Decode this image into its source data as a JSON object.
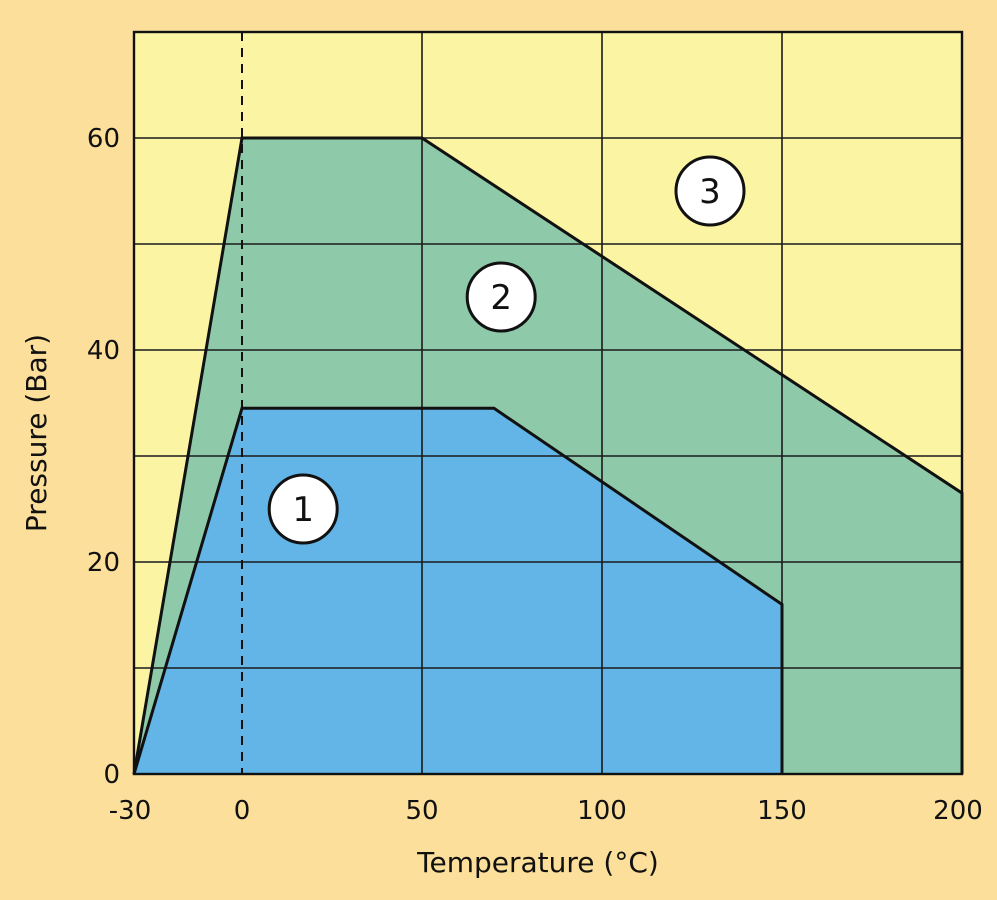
{
  "chart_data": {
    "type": "area",
    "xlabel": "Temperature (°C)",
    "ylabel": "Pressure (Bar)",
    "xlim": [
      -30,
      200
    ],
    "ylim": [
      0,
      70
    ],
    "x_ticks": [
      -30,
      0,
      50,
      100,
      150,
      200
    ],
    "x_tick_labels": [
      "-30",
      "0",
      "50",
      "100",
      "150",
      "200"
    ],
    "y_ticks": [
      0,
      20,
      40,
      60
    ],
    "y_tick_labels": [
      "0",
      "20",
      "40",
      "60"
    ],
    "x_grid": [
      0,
      50,
      100,
      150
    ],
    "y_grid": [
      10,
      20,
      30,
      40,
      50,
      60
    ],
    "reference_line_x": 0,
    "grid": true,
    "colors": {
      "page_background": "#fbdf9a",
      "plot_background": "#fbf5a3",
      "region_1": "#62b5e6",
      "region_2": "#8ec9a9",
      "grid": "#1a1a1a"
    },
    "regions": [
      {
        "label": "2",
        "points": [
          [
            -30,
            0
          ],
          [
            0,
            60
          ],
          [
            50,
            60
          ],
          [
            200,
            26.5
          ],
          [
            200,
            0
          ]
        ]
      },
      {
        "label": "1",
        "points": [
          [
            -30,
            0
          ],
          [
            0,
            34.5
          ],
          [
            70,
            34.5
          ],
          [
            150,
            16
          ],
          [
            150,
            0
          ]
        ]
      }
    ],
    "region_labels": [
      {
        "label": "1",
        "x": 17,
        "y": 25
      },
      {
        "label": "2",
        "x": 72,
        "y": 45
      },
      {
        "label": "3",
        "x": 130,
        "y": 55
      }
    ]
  }
}
